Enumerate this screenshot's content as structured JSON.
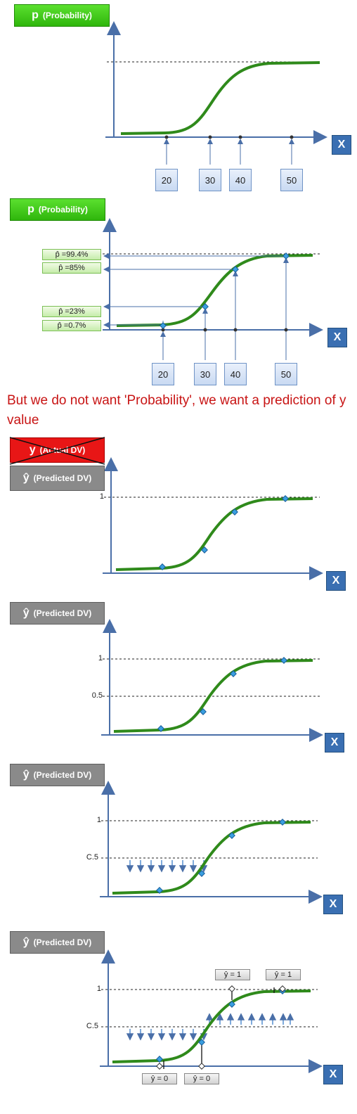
{
  "panels": [
    {
      "badge": "(Probability)",
      "badge_letter": "p",
      "x_label": "X",
      "ticks": [
        "20",
        "30",
        "40",
        "50"
      ]
    },
    {
      "badge": "(Probability)",
      "badge_letter": "p",
      "x_label": "X",
      "ticks": [
        "20",
        "30",
        "40",
        "50"
      ],
      "prob_labels": [
        "p̂ =99.4%",
        "p̂ =85%",
        "p̂ =23%",
        "p̂ =0.7%"
      ]
    },
    {
      "badge_top": "(Actual DV)",
      "badge_top_letter": "y",
      "badge": "(Predicted DV)",
      "badge_letter": "ŷ",
      "x_label": "X",
      "y_ticks": [
        "1"
      ]
    },
    {
      "badge": "(Predicted DV)",
      "badge_letter": "ŷ",
      "x_label": "X",
      "y_ticks": [
        "1",
        "0.5"
      ]
    },
    {
      "badge": "(Predicted DV)",
      "badge_letter": "ŷ",
      "x_label": "X",
      "y_ticks": [
        "1",
        "C.5"
      ]
    },
    {
      "badge": "(Predicted DV)",
      "badge_letter": "ŷ",
      "x_label": "X",
      "y_ticks": [
        "1",
        "C.5"
      ],
      "pred_labels": [
        "ŷ = 1",
        "ŷ = 1",
        "ŷ = 0",
        "ŷ = 0"
      ]
    }
  ],
  "message": "But we do not want 'Probability', we want a prediction of y value",
  "colors": {
    "curve": "#2f8a1b",
    "axis": "#4a6fa8",
    "marker": "#3a9fe0",
    "arrow": "#3a7ec8"
  }
}
